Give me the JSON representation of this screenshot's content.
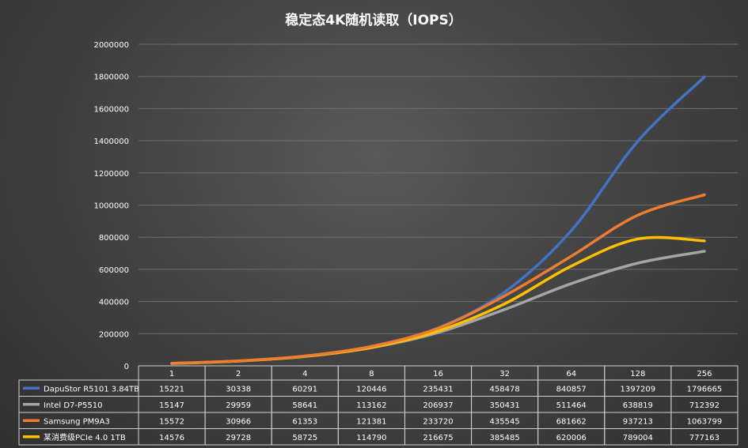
{
  "chart_data": {
    "type": "line",
    "title": "稳定态4K随机读取（IOPS）",
    "categories": [
      "1",
      "2",
      "4",
      "8",
      "16",
      "32",
      "64",
      "128",
      "256"
    ],
    "ylim": [
      0,
      2000000
    ],
    "yticks": [
      "0",
      "200000",
      "400000",
      "600000",
      "800000",
      "1000000",
      "1200000",
      "1400000",
      "1600000",
      "1800000",
      "2000000"
    ],
    "grid": true,
    "legend_placement": "data table rows below chart",
    "series": [
      {
        "name": "DapuStor R5101 3.84TB",
        "color": "#4472c4",
        "values": [
          15221,
          30338,
          60291,
          120446,
          235431,
          458478,
          840857,
          1397209,
          1796665
        ]
      },
      {
        "name": "Intel D7-P5510",
        "color": "#a5a5a5",
        "values": [
          15147,
          29959,
          58641,
          113162,
          206937,
          350431,
          511464,
          638819,
          712392
        ]
      },
      {
        "name": "Samsung PM9A3",
        "color": "#ed7d31",
        "values": [
          15572,
          30966,
          61353,
          121381,
          233720,
          435545,
          681662,
          937213,
          1063799
        ]
      },
      {
        "name": "某消费级PCIe 4.0 1TB",
        "color": "#ffc000",
        "values": [
          14576,
          29728,
          58725,
          114790,
          216675,
          385485,
          620006,
          789004,
          777163
        ]
      }
    ]
  }
}
